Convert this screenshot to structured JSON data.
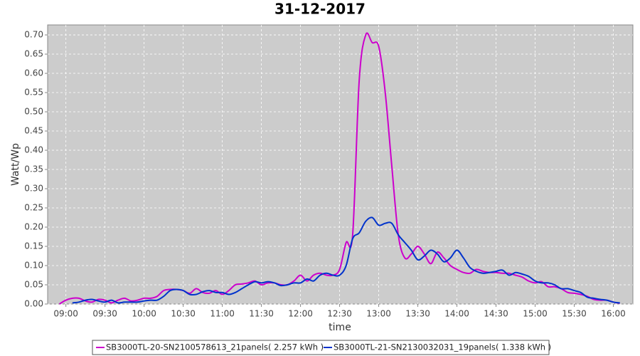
{
  "chart_data": {
    "type": "line",
    "title": "31-12-2017",
    "x_label": "time",
    "y_label": "Watt/Wp",
    "x": [
      "08:55",
      "09:00",
      "09:05",
      "09:10",
      "09:15",
      "09:20",
      "09:25",
      "09:30",
      "09:35",
      "09:40",
      "09:45",
      "09:50",
      "09:55",
      "10:00",
      "10:05",
      "10:10",
      "10:15",
      "10:20",
      "10:25",
      "10:30",
      "10:35",
      "10:40",
      "10:45",
      "10:50",
      "10:55",
      "11:00",
      "11:05",
      "11:10",
      "11:15",
      "11:20",
      "11:25",
      "11:30",
      "11:35",
      "11:40",
      "11:45",
      "11:50",
      "11:55",
      "12:00",
      "12:05",
      "12:10",
      "12:15",
      "12:20",
      "12:25",
      "12:30",
      "12:35",
      "12:40",
      "12:45",
      "12:50",
      "12:55",
      "13:00",
      "13:05",
      "13:10",
      "13:15",
      "13:20",
      "13:25",
      "13:30",
      "13:35",
      "13:40",
      "13:45",
      "13:50",
      "13:55",
      "14:00",
      "14:05",
      "14:10",
      "14:15",
      "14:20",
      "14:25",
      "14:30",
      "14:35",
      "14:40",
      "14:45",
      "14:50",
      "14:55",
      "15:00",
      "15:05",
      "15:10",
      "15:15",
      "15:20",
      "15:25",
      "15:30",
      "15:35",
      "15:40",
      "15:45",
      "15:50",
      "15:55",
      "16:00",
      "16:05"
    ],
    "series": [
      {
        "name": "SB3000TL-20-SN2100578613_21panels( 2.257 kWh )",
        "color": "#cc00cc",
        "values": [
          0.0,
          0.01,
          0.015,
          0.015,
          0.008,
          0.005,
          0.012,
          0.01,
          0.003,
          0.01,
          0.015,
          0.008,
          0.01,
          0.015,
          0.015,
          0.02,
          0.035,
          0.038,
          0.038,
          0.035,
          0.028,
          0.04,
          0.03,
          0.028,
          0.035,
          0.025,
          0.035,
          0.05,
          0.052,
          0.055,
          0.06,
          0.05,
          0.055,
          0.055,
          0.05,
          0.05,
          0.06,
          0.075,
          0.06,
          0.075,
          0.08,
          0.075,
          0.075,
          0.09,
          0.16,
          0.18,
          0.58,
          0.7,
          0.68,
          0.67,
          0.55,
          0.36,
          0.18,
          0.12,
          0.13,
          0.15,
          0.13,
          0.105,
          0.135,
          0.12,
          0.1,
          0.09,
          0.082,
          0.08,
          0.09,
          0.085,
          0.082,
          0.082,
          0.08,
          0.08,
          0.075,
          0.07,
          0.06,
          0.055,
          0.058,
          0.045,
          0.045,
          0.04,
          0.03,
          0.028,
          0.025,
          0.02,
          0.012,
          0.01,
          0.01,
          0.005,
          0.002
        ]
      },
      {
        "name": "SB3000TL-21-SN2130032031_19panels( 1.338 kWh )",
        "color": "#0033cc",
        "values": [
          null,
          null,
          0.003,
          0.005,
          0.01,
          0.012,
          0.008,
          0.005,
          0.01,
          0.003,
          0.005,
          0.005,
          0.005,
          0.008,
          0.01,
          0.01,
          0.02,
          0.035,
          0.038,
          0.035,
          0.025,
          0.025,
          0.032,
          0.035,
          0.03,
          0.03,
          0.025,
          0.03,
          0.04,
          0.05,
          0.058,
          0.055,
          0.058,
          0.055,
          0.048,
          0.05,
          0.055,
          0.055,
          0.065,
          0.06,
          0.075,
          0.08,
          0.075,
          0.075,
          0.1,
          0.17,
          0.185,
          0.215,
          0.225,
          0.205,
          0.21,
          0.21,
          0.18,
          0.16,
          0.14,
          0.115,
          0.125,
          0.14,
          0.13,
          0.11,
          0.12,
          0.14,
          0.12,
          0.095,
          0.085,
          0.08,
          0.082,
          0.085,
          0.088,
          0.075,
          0.082,
          0.078,
          0.072,
          0.06,
          0.055,
          0.055,
          0.05,
          0.04,
          0.04,
          0.035,
          0.03,
          0.018,
          0.015,
          0.012,
          0.01,
          0.005,
          0.003
        ]
      }
    ],
    "xlim": [
      "08:46",
      "16:15"
    ],
    "xticks": [
      "09:00",
      "09:30",
      "10:00",
      "10:30",
      "11:00",
      "11:30",
      "12:00",
      "12:30",
      "13:00",
      "13:30",
      "14:00",
      "14:30",
      "15:00",
      "15:30",
      "16:00"
    ],
    "ylim": [
      0,
      0.726
    ],
    "yticks": [
      {
        "value": 0,
        "label": "0.00"
      },
      {
        "value": 0.05,
        "label": "0.05"
      },
      {
        "value": 0.1,
        "label": "0.10"
      },
      {
        "value": 0.15,
        "label": "0.15"
      },
      {
        "value": 0.2,
        "label": "0.20"
      },
      {
        "value": 0.25,
        "label": "0.25"
      },
      {
        "value": 0.3,
        "label": "0.30"
      },
      {
        "value": 0.35,
        "label": "0.35"
      },
      {
        "value": 0.4,
        "label": "0.40"
      },
      {
        "value": 0.45,
        "label": "0.45"
      },
      {
        "value": 0.5,
        "label": "0.50"
      },
      {
        "value": 0.55,
        "label": "0.55"
      },
      {
        "value": 0.6,
        "label": "0.60"
      },
      {
        "value": 0.65,
        "label": "0.65"
      },
      {
        "value": 0.7,
        "label": "0.70"
      }
    ],
    "grid": true,
    "legend": "bottom"
  }
}
